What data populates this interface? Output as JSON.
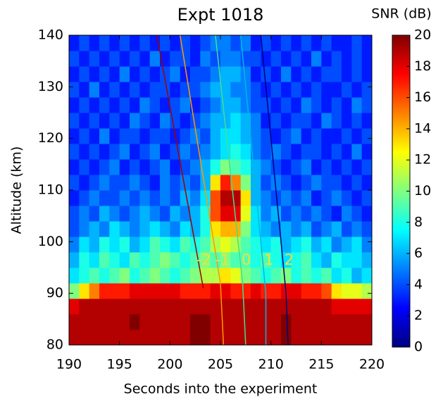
{
  "chart_data": {
    "type": "heatmap",
    "title": "Expt 1018",
    "x_label": "Seconds into the experiment",
    "y_label": "Altitude (km)",
    "xlim": [
      190,
      220
    ],
    "xticks": [
      190,
      195,
      200,
      205,
      210,
      215,
      220
    ],
    "ylim": [
      80,
      140
    ],
    "yticks": [
      80,
      90,
      100,
      110,
      120,
      130,
      140
    ],
    "x_bins": [
      190,
      191,
      192,
      193,
      194,
      195,
      196,
      197,
      198,
      199,
      200,
      201,
      202,
      203,
      204,
      205,
      206,
      207,
      208,
      209,
      210,
      211,
      212,
      213,
      214,
      215,
      216,
      217,
      218,
      219,
      220
    ],
    "y_bins": [
      80,
      83,
      86,
      89,
      92,
      95,
      98,
      101,
      104,
      107,
      110,
      113,
      116,
      119,
      122,
      125,
      128,
      131,
      134,
      137,
      140
    ],
    "z": [
      [
        19,
        19,
        19,
        19,
        19,
        19,
        19,
        19,
        19,
        19,
        19,
        19,
        20,
        20,
        19,
        19,
        19,
        19,
        19,
        19,
        19,
        20,
        19,
        19,
        19,
        19,
        19,
        19,
        19,
        19
      ],
      [
        19,
        19,
        19,
        19,
        19,
        19,
        20,
        19,
        19,
        19,
        19,
        19,
        20,
        20,
        19,
        19,
        19,
        19,
        19,
        19,
        19,
        20,
        19,
        19,
        19,
        19,
        19,
        19,
        19,
        19
      ],
      [
        18,
        19,
        19,
        19,
        19,
        19,
        19,
        19,
        19,
        19,
        19,
        19,
        19,
        19,
        19,
        19,
        19,
        19,
        19,
        19,
        19,
        19,
        19,
        19,
        19,
        19,
        18,
        18,
        18,
        18
      ],
      [
        10,
        13,
        15,
        17,
        17,
        17,
        18,
        18,
        18,
        18,
        18,
        17,
        17,
        17,
        18,
        18,
        17,
        17,
        18,
        17,
        17,
        18,
        18,
        17,
        17,
        16,
        13,
        12,
        12,
        11
      ],
      [
        7,
        8,
        9,
        8,
        9,
        10,
        8,
        9,
        10,
        9,
        8,
        9,
        10,
        11,
        11,
        13,
        12,
        10,
        9,
        8,
        9,
        10,
        8,
        9,
        8,
        9,
        7,
        8,
        6,
        7
      ],
      [
        6,
        8,
        7,
        9,
        8,
        7,
        9,
        8,
        9,
        10,
        9,
        8,
        9,
        10,
        9,
        10,
        9,
        9,
        8,
        9,
        8,
        7,
        8,
        9,
        7,
        6,
        8,
        7,
        7,
        6
      ],
      [
        5,
        7,
        6,
        8,
        7,
        8,
        6,
        7,
        9,
        8,
        7,
        9,
        8,
        9,
        11,
        12,
        11,
        9,
        8,
        7,
        8,
        6,
        7,
        8,
        6,
        7,
        5,
        6,
        7,
        5
      ],
      [
        4,
        5,
        6,
        5,
        7,
        6,
        5,
        6,
        7,
        6,
        5,
        7,
        6,
        8,
        13,
        14,
        14,
        10,
        7,
        6,
        5,
        6,
        5,
        6,
        4,
        5,
        6,
        4,
        5,
        4
      ],
      [
        4,
        5,
        4,
        6,
        5,
        4,
        5,
        6,
        5,
        4,
        6,
        5,
        6,
        8,
        16,
        18,
        18,
        12,
        7,
        5,
        6,
        4,
        5,
        4,
        5,
        4,
        3,
        5,
        4,
        3
      ],
      [
        3,
        4,
        5,
        4,
        4,
        5,
        4,
        5,
        4,
        5,
        4,
        6,
        5,
        7,
        16,
        19,
        19,
        13,
        6,
        5,
        4,
        5,
        4,
        5,
        3,
        4,
        5,
        4,
        3,
        4
      ],
      [
        4,
        3,
        4,
        5,
        4,
        4,
        5,
        4,
        3,
        5,
        4,
        5,
        4,
        6,
        13,
        17,
        15,
        10,
        6,
        4,
        5,
        4,
        3,
        4,
        5,
        4,
        4,
        3,
        4,
        3
      ],
      [
        3,
        4,
        3,
        4,
        5,
        3,
        4,
        3,
        4,
        5,
        3,
        4,
        5,
        6,
        8,
        10,
        9,
        8,
        6,
        5,
        4,
        3,
        4,
        5,
        3,
        4,
        3,
        4,
        3,
        4
      ],
      [
        4,
        3,
        4,
        3,
        4,
        5,
        3,
        4,
        5,
        3,
        4,
        5,
        4,
        5,
        6,
        7,
        8,
        7,
        5,
        4,
        5,
        4,
        3,
        4,
        4,
        3,
        4,
        3,
        5,
        3
      ],
      [
        3,
        4,
        3,
        5,
        3,
        4,
        4,
        3,
        4,
        4,
        3,
        4,
        5,
        4,
        6,
        7,
        7,
        6,
        5,
        4,
        3,
        4,
        5,
        3,
        4,
        3,
        3,
        4,
        3,
        4
      ],
      [
        4,
        3,
        4,
        3,
        4,
        3,
        5,
        4,
        3,
        5,
        4,
        3,
        4,
        5,
        6,
        6,
        7,
        6,
        5,
        3,
        4,
        3,
        4,
        4,
        3,
        5,
        4,
        3,
        4,
        3
      ],
      [
        3,
        4,
        3,
        4,
        3,
        4,
        3,
        5,
        4,
        3,
        4,
        5,
        3,
        4,
        5,
        6,
        6,
        5,
        4,
        4,
        3,
        4,
        3,
        5,
        4,
        3,
        4,
        3,
        5,
        4
      ],
      [
        4,
        3,
        5,
        3,
        4,
        3,
        4,
        3,
        4,
        4,
        3,
        4,
        4,
        5,
        6,
        6,
        5,
        5,
        4,
        3,
        4,
        3,
        4,
        3,
        4,
        3,
        3,
        4,
        3,
        4
      ],
      [
        3,
        4,
        3,
        4,
        3,
        5,
        3,
        4,
        3,
        4,
        5,
        3,
        4,
        4,
        5,
        6,
        6,
        5,
        3,
        4,
        3,
        5,
        3,
        4,
        3,
        4,
        4,
        3,
        4,
        3
      ],
      [
        4,
        3,
        4,
        3,
        4,
        3,
        4,
        3,
        5,
        3,
        4,
        4,
        3,
        5,
        4,
        5,
        5,
        4,
        4,
        3,
        4,
        3,
        4,
        3,
        5,
        3,
        4,
        3,
        4,
        3
      ],
      [
        3,
        4,
        3,
        4,
        3,
        4,
        3,
        4,
        3,
        4,
        3,
        4,
        3,
        4,
        5,
        5,
        4,
        5,
        3,
        4,
        3,
        4,
        3,
        4,
        3,
        4,
        3,
        3,
        4,
        3
      ]
    ],
    "colorbar": {
      "label": "SNR (dB)",
      "lim": [
        0,
        20
      ],
      "ticks": [
        0,
        2,
        4,
        6,
        8,
        10,
        12,
        14,
        16,
        18,
        20
      ]
    },
    "series": [
      {
        "name": "-2",
        "color": "#a00000",
        "x": [
          198.7,
          203.3
        ],
        "y": [
          140,
          91
        ]
      },
      {
        "name": "-1",
        "color": "#ff9900",
        "x": [
          201,
          205,
          205.3
        ],
        "y": [
          140,
          92,
          80
        ]
      },
      {
        "name": "0",
        "color": "#40e090",
        "x": [
          204.5,
          207.2,
          207.5
        ],
        "y": [
          140,
          92,
          80
        ]
      },
      {
        "name": "1",
        "color": "#00b8e0",
        "x": [
          207,
          209.5,
          209.5
        ],
        "y": [
          140,
          90,
          80
        ]
      },
      {
        "name": "2",
        "color": "#000080",
        "x": [
          209,
          211.5,
          211.7
        ],
        "y": [
          140,
          90,
          80
        ]
      }
    ],
    "series_label_color": "#f0e040"
  }
}
